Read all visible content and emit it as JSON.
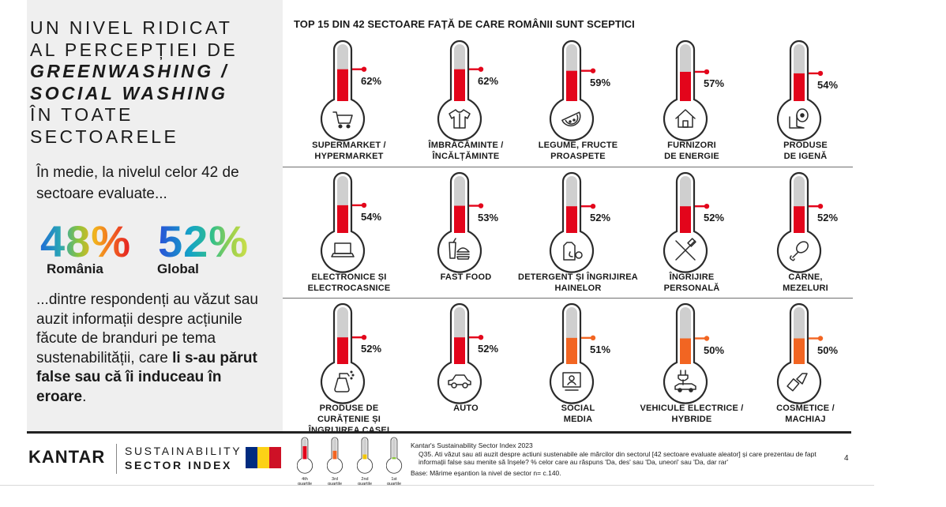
{
  "headline": {
    "line1": "UN NIVEL RIDICAT",
    "line2": "AL PERCEPȚIEI DE",
    "line3": "GREENWASHING /",
    "line4": "SOCIAL WASHING",
    "line5": "ÎN TOATE",
    "line6": "SECTOARELE"
  },
  "intro": "În medie, la nivelul celor 42 de sectoare evaluate...",
  "averages": {
    "romania_value": "48%",
    "romania_label": "România",
    "global_value": "52%",
    "global_label": "Global"
  },
  "outro": {
    "plain": "...dintre respondenți au văzut sau auzit informații despre acțiunile făcute de branduri pe tema sustenabilității, care ",
    "bold": "li s-au părut false sau că îi induceau în eroare",
    "end": "."
  },
  "chart_title": "TOP 15 DIN 42 SECTOARE FAȚĂ DE CARE ROMÂNII SUNT SCEPTICI",
  "chart_data": {
    "type": "bar",
    "title": "TOP 15 DIN 42 SECTOARE FAȚĂ DE CARE ROMÂNII SUNT SCEPTICI",
    "unit": "%",
    "ylim": [
      0,
      100
    ],
    "categories": [
      "SUPERMARKET / HYPERMARKET",
      "ÎMBRĂCĂMINTE / ÎNCĂLȚĂMINTE",
      "LEGUME, FRUCTE PROASPETE",
      "FURNIZORI DE ENERGIE",
      "PRODUSE DE IGENĂ",
      "ELECTRONICE ȘI ELECTROCASNICE",
      "FAST FOOD",
      "DETERGENT ȘI ÎNGRIJIREA HAINELOR",
      "ÎNGRIJIRE PERSONALĂ",
      "CARNE, MEZELURI",
      "PRODUSE DE CURĂȚENIE ȘI ÎNGRIJIREA CASEI",
      "AUTO",
      "SOCIAL MEDIA",
      "VEHICULE ELECTRICE / HYBRIDE",
      "COSMETICE / MACHIAJ"
    ],
    "values": [
      62,
      62,
      59,
      57,
      54,
      54,
      53,
      52,
      52,
      52,
      52,
      52,
      51,
      50,
      50
    ]
  },
  "sectors": [
    {
      "line1": "SUPERMARKET /",
      "line2": "HYPERMARKET",
      "pct": "62%",
      "value": 62,
      "quartile": 4,
      "icon": "shopping-cart-icon"
    },
    {
      "line1": "ÎMBRĂCĂMINTE /",
      "line2": "ÎNCĂLȚĂMINTE",
      "pct": "62%",
      "value": 62,
      "quartile": 4,
      "icon": "shirt-icon"
    },
    {
      "line1": "LEGUME, FRUCTE",
      "line2": "PROASPETE",
      "pct": "59%",
      "value": 59,
      "quartile": 4,
      "icon": "watermelon-icon"
    },
    {
      "line1": "FURNIZORI",
      "line2": "DE ENERGIE",
      "pct": "57%",
      "value": 57,
      "quartile": 4,
      "icon": "house-icon"
    },
    {
      "line1": "PRODUSE",
      "line2": "DE IGENĂ",
      "pct": "54%",
      "value": 54,
      "quartile": 4,
      "icon": "toilet-paper-icon"
    },
    {
      "line1": "ELECTRONICE ȘI",
      "line2": "ELECTROCASNICE",
      "pct": "54%",
      "value": 54,
      "quartile": 4,
      "icon": "laptop-icon"
    },
    {
      "line1": "FAST FOOD",
      "line2": "",
      "pct": "53%",
      "value": 53,
      "quartile": 4,
      "icon": "fast-food-icon"
    },
    {
      "line1": "DETERGENT ȘI ÎNGRIJIREA",
      "line2": "HAINELOR",
      "pct": "52%",
      "value": 52,
      "quartile": 4,
      "icon": "detergent-icon"
    },
    {
      "line1": "ÎNGRIJIRE",
      "line2": "PERSONALĂ",
      "pct": "52%",
      "value": 52,
      "quartile": 4,
      "icon": "toothbrush-icon"
    },
    {
      "line1": "CARNE,",
      "line2": "MEZELURI",
      "pct": "52%",
      "value": 52,
      "quartile": 4,
      "icon": "drumstick-icon"
    },
    {
      "line1": "PRODUSE DE",
      "line2": "CURĂȚENIE ȘI",
      "line3": "ÎNGRIJIREA CASEI",
      "pct": "52%",
      "value": 52,
      "quartile": 4,
      "icon": "spray-bottle-icon"
    },
    {
      "line1": "AUTO",
      "line2": "",
      "pct": "52%",
      "value": 52,
      "quartile": 4,
      "icon": "car-icon"
    },
    {
      "line1": "SOCIAL",
      "line2": "MEDIA",
      "pct": "51%",
      "value": 51,
      "quartile": 3,
      "icon": "social-media-icon"
    },
    {
      "line1": "VEHICULE ELECTRICE /",
      "line2": "HYBRIDE",
      "pct": "50%",
      "value": 50,
      "quartile": 3,
      "icon": "ev-charger-icon"
    },
    {
      "line1": "COSMETICE /",
      "line2": "MACHIAJ",
      "pct": "50%",
      "value": 50,
      "quartile": 3,
      "icon": "lipstick-icon"
    }
  ],
  "colors": {
    "quartile4": "#e3051b",
    "quartile3": "#f26522",
    "quartile2": "#f2c500",
    "quartile1": "#8cc63f",
    "thermo_tube": "#cfcfcf",
    "thermo_outline": "#2b2b2b"
  },
  "footer": {
    "brand": "KANTAR",
    "ssi_line1": "SUSTAINABILITY",
    "ssi_line2": "SECTOR INDEX",
    "flag_colors": [
      "#002b7f",
      "#fcd116",
      "#ce1126"
    ],
    "legend": [
      {
        "sup": "4th",
        "label": "quartile",
        "value": 70,
        "color": "#e3051b"
      },
      {
        "sup": "3rd",
        "label": "quartile",
        "value": 45,
        "color": "#f26522"
      },
      {
        "sup": "2nd",
        "label": "quartile",
        "value": 25,
        "color": "#f2c500"
      },
      {
        "sup": "1st",
        "label": "quartile",
        "value": 10,
        "color": "#8cc63f"
      }
    ],
    "source_title": "Kantar's Sustainability Sector Index 2023",
    "question": "Q35. Ati văzut sau ati auzit despre actiuni sustenabile ale mărcilor din sectorul [42 sectoare evaluate aleator] și care prezentau de fapt informații false sau menite să înșele? % celor care au răspuns 'Da, des' sau 'Da, uneori' sau 'Da, dar rar'",
    "base": "Base: Mărime eșantion la nivel de sector n= c.140.",
    "page": "4"
  }
}
